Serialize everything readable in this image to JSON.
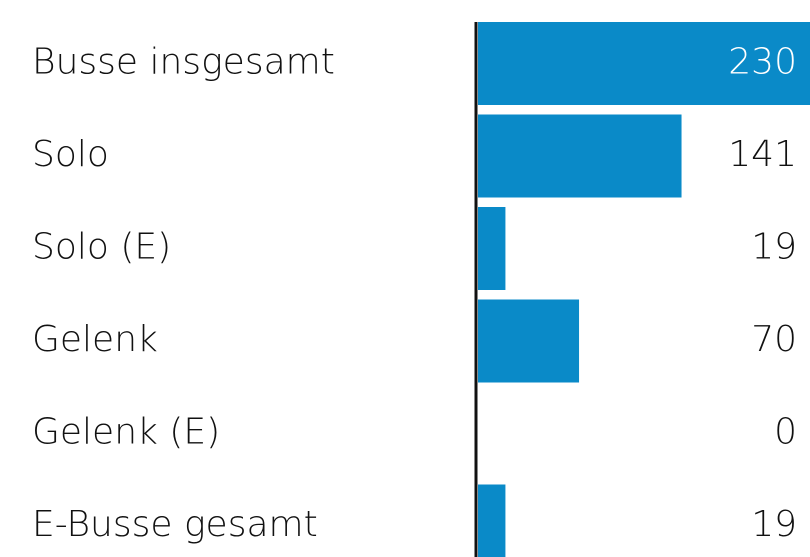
{
  "chart_data": {
    "type": "barh",
    "categories": [
      "Busse insgesamt",
      "Solo",
      "Solo (E)",
      "Gelenk",
      "Gelenk (E)",
      "E-Busse gesamt"
    ],
    "values": [
      230,
      141,
      19,
      70,
      0,
      19
    ],
    "color": "#0a8ac8"
  }
}
